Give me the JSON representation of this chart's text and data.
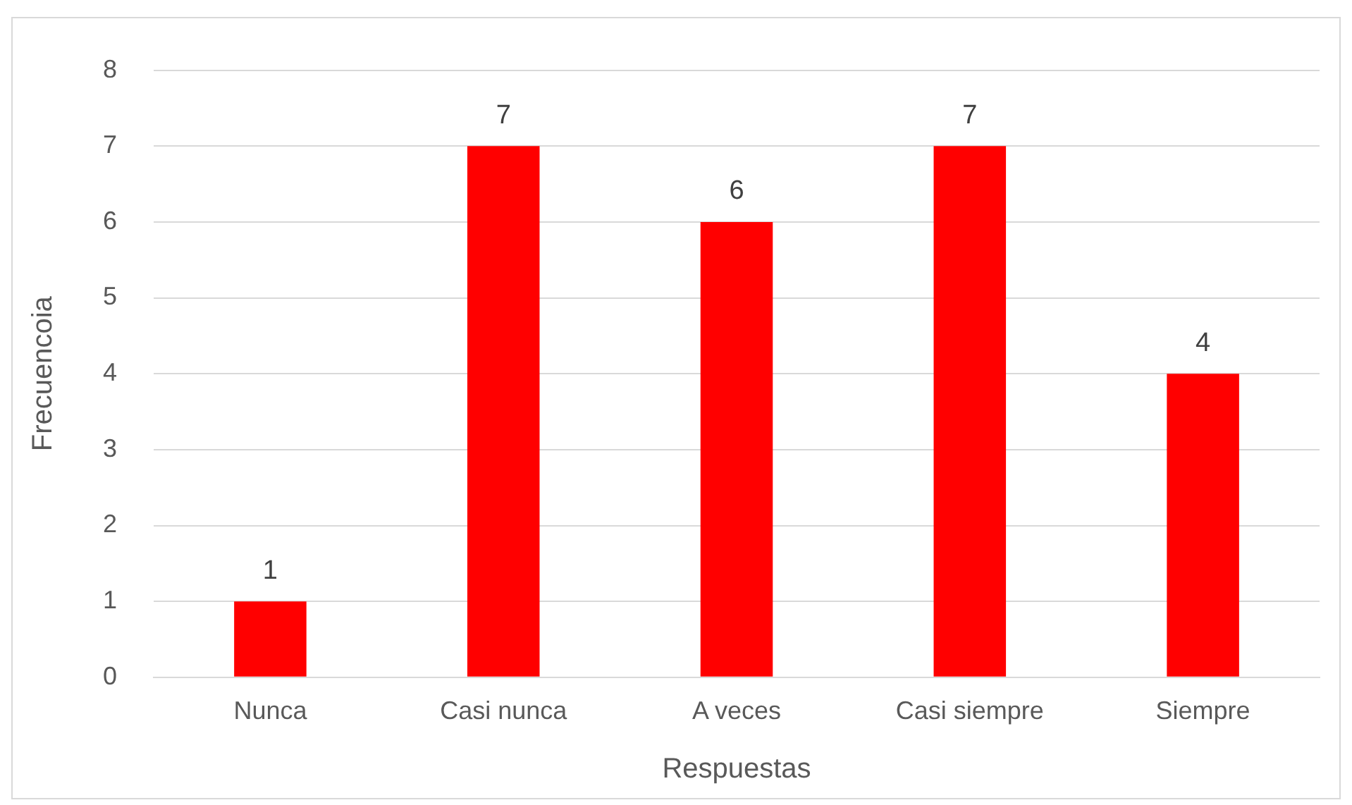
{
  "chart_data": {
    "type": "bar",
    "xlabel": "Respuestas",
    "ylabel": "Frecuencoia",
    "categories": [
      "Nunca",
      "Casi nunca",
      "A veces",
      "Casi siempre",
      "Siempre"
    ],
    "values": [
      1,
      7,
      6,
      7,
      4
    ],
    "color": "#ff0000",
    "ylim": [
      0,
      8
    ],
    "yticks": [
      0,
      1,
      2,
      3,
      4,
      5,
      6,
      7,
      8
    ],
    "grid": "y",
    "data_labels": true
  }
}
